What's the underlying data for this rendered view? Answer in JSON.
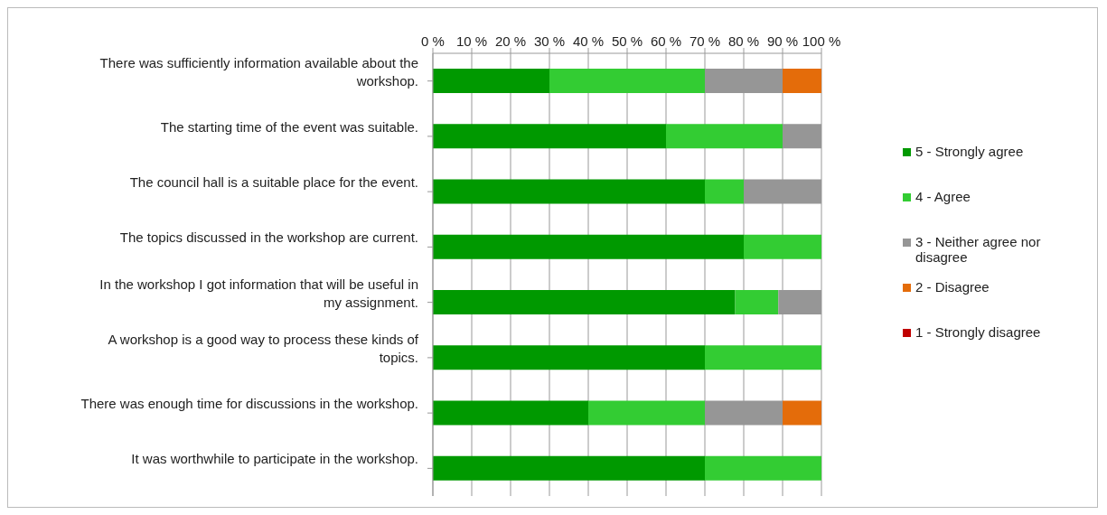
{
  "chart_data": {
    "type": "bar",
    "orientation": "horizontal",
    "stacked": true,
    "categories": [
      "There was sufficiently information available about the workshop.",
      "The starting time of the event was suitable.",
      "The council hall is a suitable place for the event.",
      "The topics discussed in the workshop are current.",
      "In the workshop I got information that will be useful in my assignment.",
      "A workshop is a good way to process these kinds of topics.",
      "There was enough time for discussions in the workshop.",
      "It was worthwhile to participate in the workshop."
    ],
    "series": [
      {
        "name": "5 - Strongly agree",
        "color": "#009900",
        "values": [
          30,
          60,
          70,
          80,
          77.8,
          70,
          40,
          70
        ]
      },
      {
        "name": "4 - Agree",
        "color": "#33cc33",
        "values": [
          40,
          30,
          10,
          20,
          11.1,
          30,
          30,
          30
        ]
      },
      {
        "name": "3 - Neither agree nor disagree",
        "color": "#969696",
        "values": [
          20,
          10,
          20,
          0,
          11.1,
          0,
          20,
          0
        ]
      },
      {
        "name": "2 - Disagree",
        "color": "#e46c0a",
        "values": [
          10,
          0,
          0,
          0,
          0,
          0,
          10,
          0
        ]
      },
      {
        "name": "1 - Strongly disagree",
        "color": "#c00000",
        "values": [
          0,
          0,
          0,
          0,
          0,
          0,
          0,
          0
        ]
      }
    ],
    "xlim": [
      0,
      100
    ],
    "xticks": [
      {
        "value": 0,
        "label": "0 %"
      },
      {
        "value": 10,
        "label": "10 %"
      },
      {
        "value": 20,
        "label": "20 %"
      },
      {
        "value": 30,
        "label": "30 %"
      },
      {
        "value": 40,
        "label": "40 %"
      },
      {
        "value": 50,
        "label": "50 %"
      },
      {
        "value": 60,
        "label": "60 %"
      },
      {
        "value": 70,
        "label": "70 %"
      },
      {
        "value": 80,
        "label": "80 %"
      },
      {
        "value": 90,
        "label": "90 %"
      },
      {
        "value": 100,
        "label": "100 %"
      }
    ],
    "grid": "x",
    "legend": "right"
  }
}
